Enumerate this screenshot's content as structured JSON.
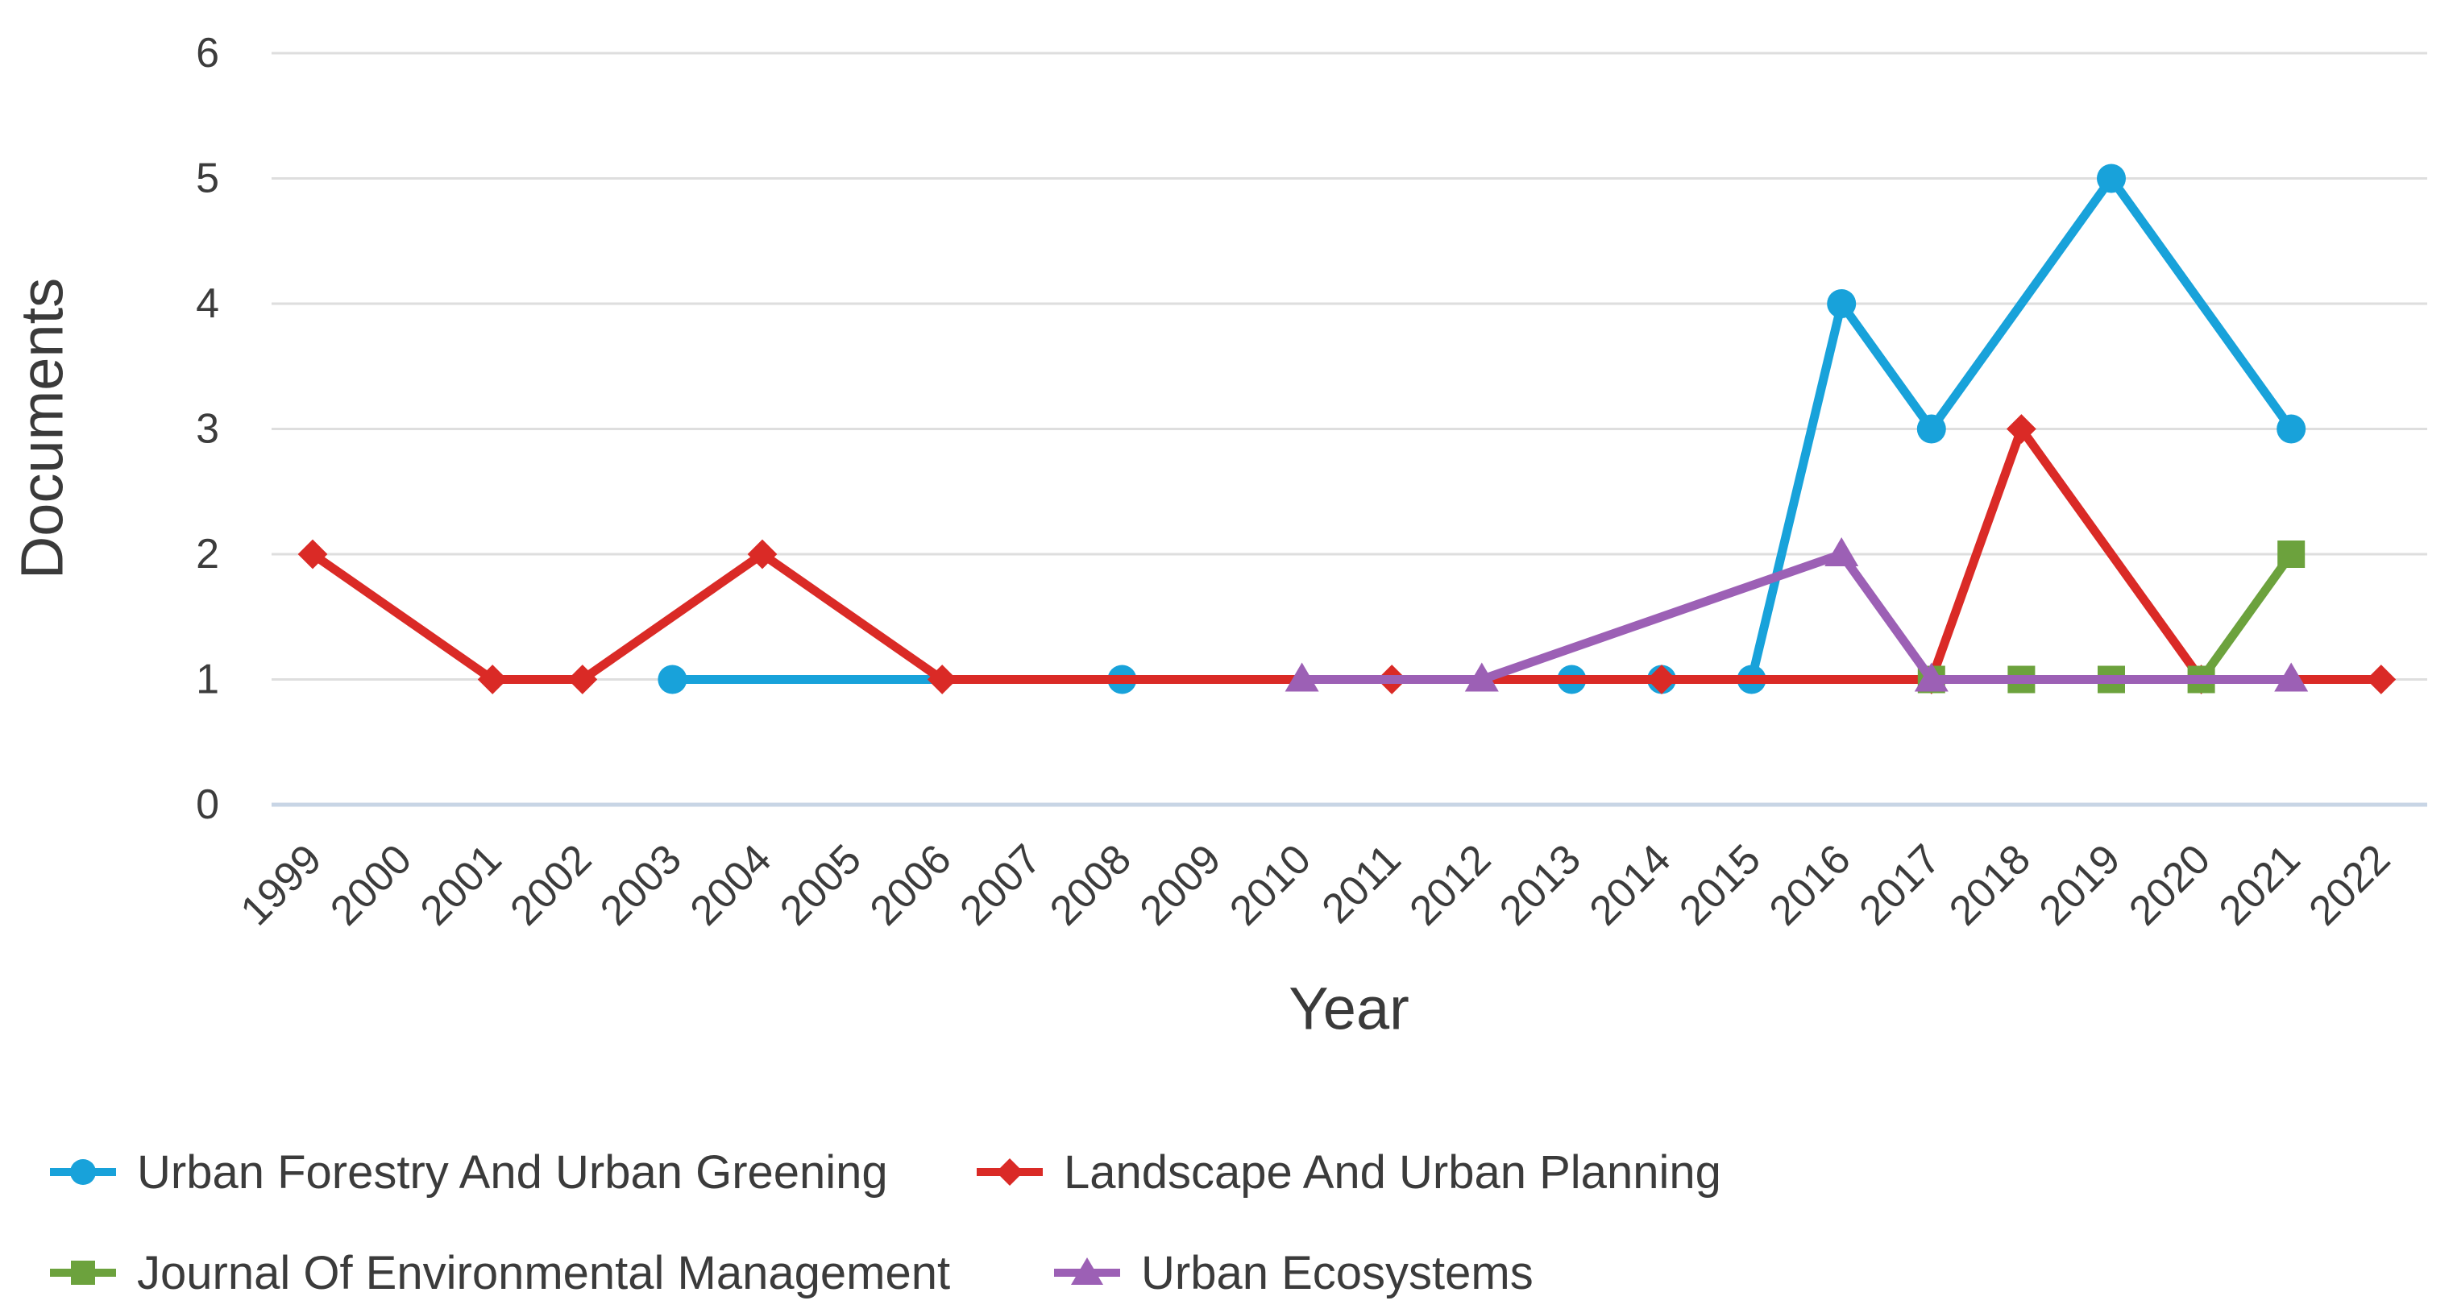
{
  "page": {
    "background": "#ffffff",
    "description": "Documents per year by source line chart"
  },
  "chart_data": {
    "type": "line",
    "title": "",
    "xlabel": "Year",
    "ylabel": "Documents",
    "x_ticks": [
      1999,
      2000,
      2001,
      2002,
      2003,
      2004,
      2005,
      2006,
      2007,
      2008,
      2009,
      2010,
      2011,
      2012,
      2013,
      2014,
      2015,
      2016,
      2017,
      2018,
      2019,
      2020,
      2021,
      2022
    ],
    "y_ticks": [
      0,
      1,
      2,
      3,
      4,
      5,
      6
    ],
    "xlim": [
      1999,
      2022
    ],
    "ylim": [
      0,
      6
    ],
    "grid": "horizontal",
    "legend_position": "bottom-left two rows",
    "series": [
      {
        "name": "Urban Forestry And Urban Greening",
        "color": "#18a2da",
        "marker": "circle",
        "points": [
          [
            2003,
            1
          ],
          [
            2008,
            1
          ],
          [
            2013,
            1
          ],
          [
            2014,
            1
          ],
          [
            2015,
            1
          ],
          [
            2016,
            4
          ],
          [
            2017,
            3
          ],
          [
            2019,
            5
          ],
          [
            2021,
            3
          ]
        ]
      },
      {
        "name": "Landscape And Urban Planning",
        "color": "#da2a26",
        "marker": "diamond",
        "points": [
          [
            1999,
            2
          ],
          [
            2001,
            1
          ],
          [
            2002,
            1
          ],
          [
            2004,
            2
          ],
          [
            2006,
            1
          ],
          [
            2011,
            1
          ],
          [
            2014,
            1
          ],
          [
            2017,
            1
          ],
          [
            2018,
            3
          ],
          [
            2020,
            1
          ],
          [
            2022,
            1
          ]
        ]
      },
      {
        "name": "Journal Of Environmental Management",
        "color": "#6ca23d",
        "marker": "square",
        "points": [
          [
            2017,
            1
          ],
          [
            2018,
            1
          ],
          [
            2019,
            1
          ],
          [
            2020,
            1
          ],
          [
            2021,
            2
          ]
        ]
      },
      {
        "name": "Urban Ecosystems",
        "color": "#9c60b5",
        "marker": "triangle",
        "points": [
          [
            2010,
            1
          ],
          [
            2012,
            1
          ],
          [
            2016,
            2
          ],
          [
            2017,
            1
          ],
          [
            2021,
            1
          ]
        ]
      }
    ],
    "colors": {
      "gridline": "#dedede",
      "baseline": "#c8d5e5",
      "tick_text": "#3c3c3c",
      "axis_title_text": "#3a3a3a",
      "legend_text": "#3b3b3b"
    }
  }
}
